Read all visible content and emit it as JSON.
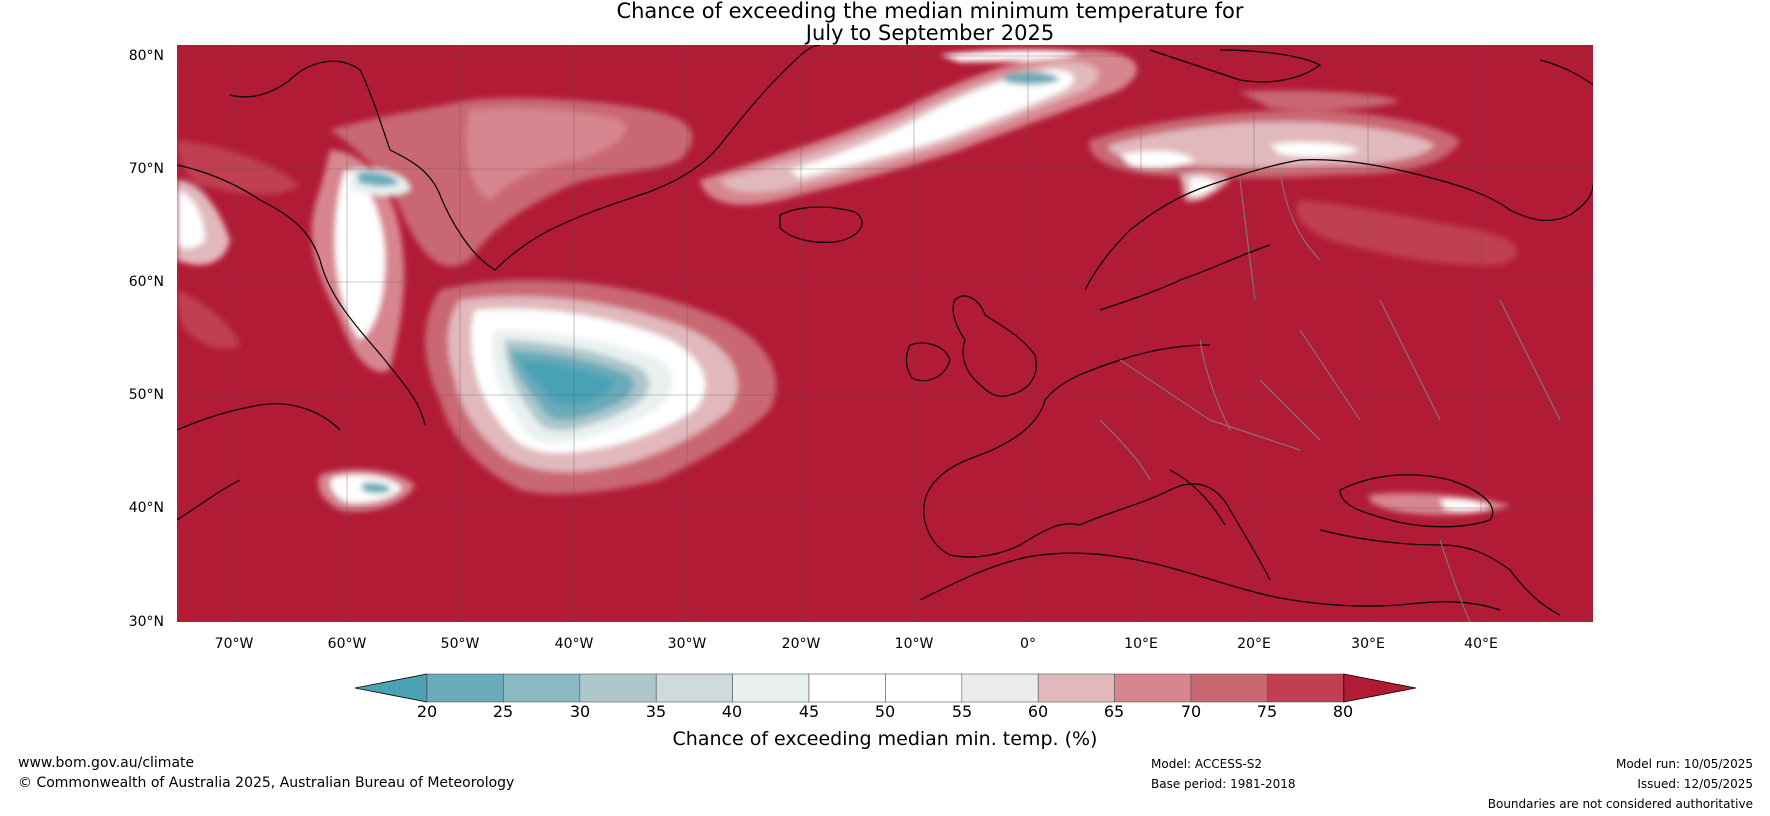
{
  "title_line1": "Chance of exceeding the median minimum temperature for",
  "title_line2": "July to September 2025",
  "lat_labels": [
    "80°N",
    "70°N",
    "60°N",
    "50°N",
    "40°N",
    "30°N"
  ],
  "lon_labels": [
    "70°W",
    "60°W",
    "50°W",
    "40°W",
    "30°W",
    "20°W",
    "10°W",
    "0°",
    "10°E",
    "20°E",
    "30°E",
    "40°E"
  ],
  "colorbar": {
    "ticks": [
      "20",
      "25",
      "30",
      "35",
      "40",
      "45",
      "50",
      "55",
      "60",
      "65",
      "70",
      "75",
      "80"
    ],
    "colors": [
      "#4aa2b4",
      "#69abb9",
      "#8ab8c3",
      "#acc6cb",
      "#cfdadb",
      "#e8f0f0",
      "#ffffff",
      "#ffffff",
      "#ececea",
      "#e1b8bc",
      "#d7858f",
      "#c96772",
      "#c03f51",
      "#b21b36"
    ],
    "title": "Chance of exceeding median min. temp. (%)"
  },
  "map_colors": {
    "ocean_land_high": "#b21b36",
    "c75": "#c03f51",
    "c70": "#c96772",
    "c65": "#d7858f",
    "c60": "#e1b8bc",
    "c55": "#ececea",
    "c50": "#ffffff",
    "c40": "#e8f0f0",
    "c35": "#acc6cb",
    "c25": "#69abb9",
    "c20": "#4aa2b4"
  },
  "footer": {
    "website": "www.bom.gov.au/climate",
    "copyright": "© Commonwealth of Australia 2025, Australian Bureau of Meteorology",
    "model": "Model: ACCESS-S2",
    "base_period": "Base period: 1981-2018",
    "model_run": "Model run: 10/05/2025",
    "issued": "Issued: 12/05/2025",
    "disclaimer": "Boundaries are not considered authoritative"
  }
}
